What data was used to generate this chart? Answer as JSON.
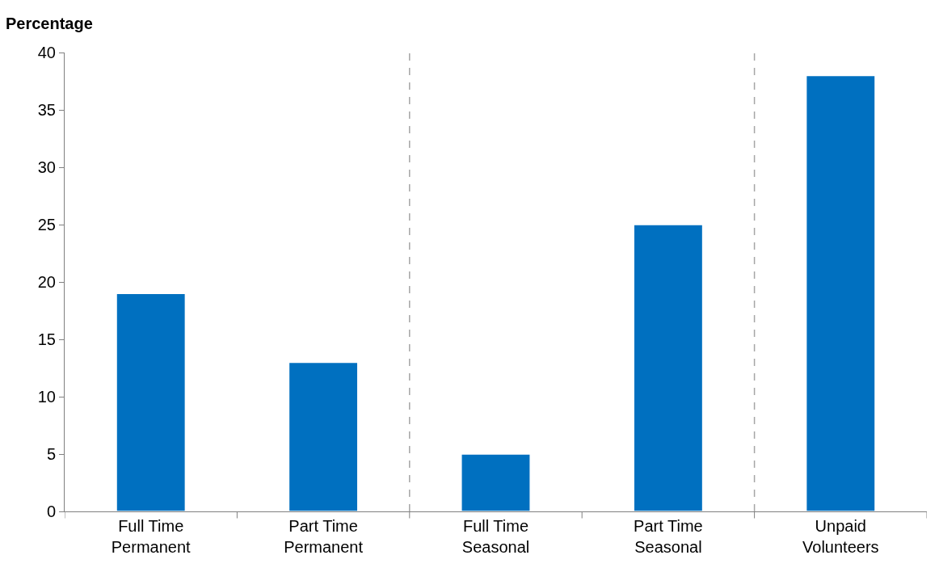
{
  "chart_data": {
    "type": "bar",
    "ylabel": "Percentage",
    "categories": [
      "Full Time\nPermanent",
      "Part Time\nPermanent",
      "Full Time\nSeasonal",
      "Part Time\nSeasonal",
      "Unpaid\nVolunteers"
    ],
    "values": [
      19,
      13,
      5,
      25,
      38
    ],
    "color": "#0070c0",
    "ylim": [
      0,
      40
    ],
    "yticks": [
      0,
      5,
      10,
      15,
      20,
      25,
      30,
      35,
      40
    ]
  }
}
